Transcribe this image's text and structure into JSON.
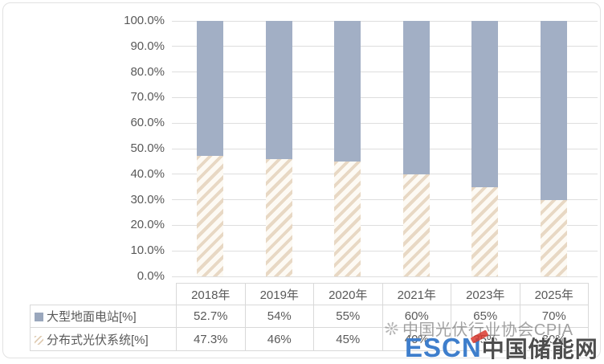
{
  "chart_data": {
    "type": "bar",
    "variant": "stacked-100-percent-column-with-data-table",
    "categories": [
      "2018年",
      "2019年",
      "2020年",
      "2021年",
      "2023年",
      "2025年"
    ],
    "series": [
      {
        "name": "大型地面电站[%]",
        "values": [
          52.7,
          54,
          55,
          60,
          65,
          70
        ],
        "labels": [
          "52.7%",
          "54%",
          "55%",
          "60%",
          "65%",
          "70%"
        ],
        "color": "#a2afc5",
        "pattern": "solid"
      },
      {
        "name": "分布式光伏系统[%]",
        "values": [
          47.3,
          46,
          45,
          40,
          35,
          30
        ],
        "labels": [
          "47.3%",
          "46%",
          "45%",
          "40%",
          "35%",
          "30%"
        ],
        "color": "#e8d8c4",
        "pattern": "diagonal-hatch"
      }
    ],
    "y_ticks": [
      "100.0%",
      "90.0%",
      "80.0%",
      "70.0%",
      "60.0%",
      "50.0%",
      "40.0%",
      "30.0%",
      "20.0%",
      "10.0%",
      "0.0%"
    ],
    "ylim": [
      0,
      100
    ],
    "grid": true,
    "legend_position": "data-table-left-column",
    "title": ""
  },
  "colors": {
    "series1": "#a2afc5",
    "series2_stripe": "#e8d8c4",
    "gridline": "#dedede",
    "text": "#595959",
    "table_border": "#d9d9d9",
    "logo_blue": "#3e7ecc",
    "logo_dark": "#4d4d4d",
    "logo_red": "#d93a2f"
  },
  "watermark": {
    "icon": "❊",
    "text": "中国光伏行业协会CPIA"
  },
  "logo": {
    "escn": "ESCN",
    "cn": "中国储能网"
  }
}
